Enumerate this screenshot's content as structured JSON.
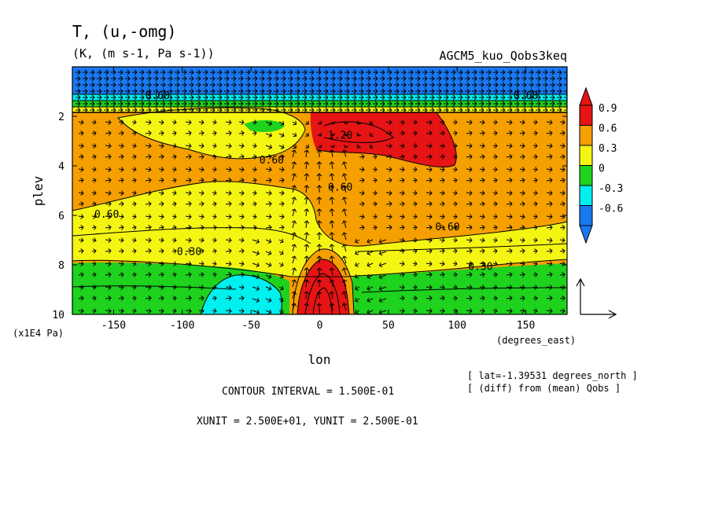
{
  "chart_data": {
    "type": "heatmap",
    "title": "T, (u,-omg)",
    "subtitle": "(K, (m s-1, Pa s-1))",
    "label_right": "AGCM5_kuo_Qobs3keq",
    "xlabel": "lon",
    "xunit_label": "(degrees_east)",
    "ylabel": "plev",
    "yunit_label": "(x1E4 Pa)",
    "xlim": [
      -180,
      180
    ],
    "ylim": [
      0,
      10
    ],
    "y_inverted": true,
    "x_ticks": [
      -150,
      -100,
      -50,
      0,
      50,
      100,
      150
    ],
    "x_tick_labels": [
      "-150",
      "-100",
      "-50",
      "0",
      "50",
      "100",
      "150"
    ],
    "y_ticks": [
      2,
      4,
      6,
      8,
      10
    ],
    "y_tick_labels": [
      "2",
      "4",
      "6",
      "8",
      "10"
    ],
    "colorbar": {
      "levels": [
        -0.6,
        -0.3,
        0,
        0.3,
        0.6,
        0.9
      ],
      "labels": [
        "-0.6",
        "-0.3",
        "0",
        "0.3",
        "0.6",
        "0.9"
      ],
      "colors": [
        "#1a78f0",
        "#00f0f0",
        "#1ed21e",
        "#f5f514",
        "#f5a000",
        "#e61414"
      ],
      "low_color": "#1a78f0",
      "high_color": "#e61414"
    },
    "contour_labels": [
      {
        "text": "0.60",
        "lon": -155,
        "plev": 6.1
      },
      {
        "text": "0.30",
        "lon": -95,
        "plev": 7.6
      },
      {
        "text": "0.60",
        "lon": -35,
        "plev": 3.9
      },
      {
        "text": "1.20",
        "lon": 15,
        "plev": 2.9
      },
      {
        "text": "0.60",
        "lon": 15,
        "plev": 5.0
      },
      {
        "text": "0.60",
        "lon": 93,
        "plev": 6.6
      },
      {
        "text": "0.30",
        "lon": 117,
        "plev": 8.2
      },
      {
        "text": "0.60",
        "lon": -118,
        "plev": 1.3
      },
      {
        "text": "0.60",
        "lon": 150,
        "plev": 1.3
      }
    ],
    "vector_ref": {
      "xunit": 25,
      "yunit": 0.25
    },
    "info_lines": [
      "[ lat=-1.39531 degrees_north ]",
      "[ (diff) from (mean) Qobs ]"
    ],
    "contour_interval_text": "CONTOUR INTERVAL = 1.500E-01",
    "unit_text": "XUNIT = 2.500E+01, YUNIT = 2.500E-01"
  }
}
